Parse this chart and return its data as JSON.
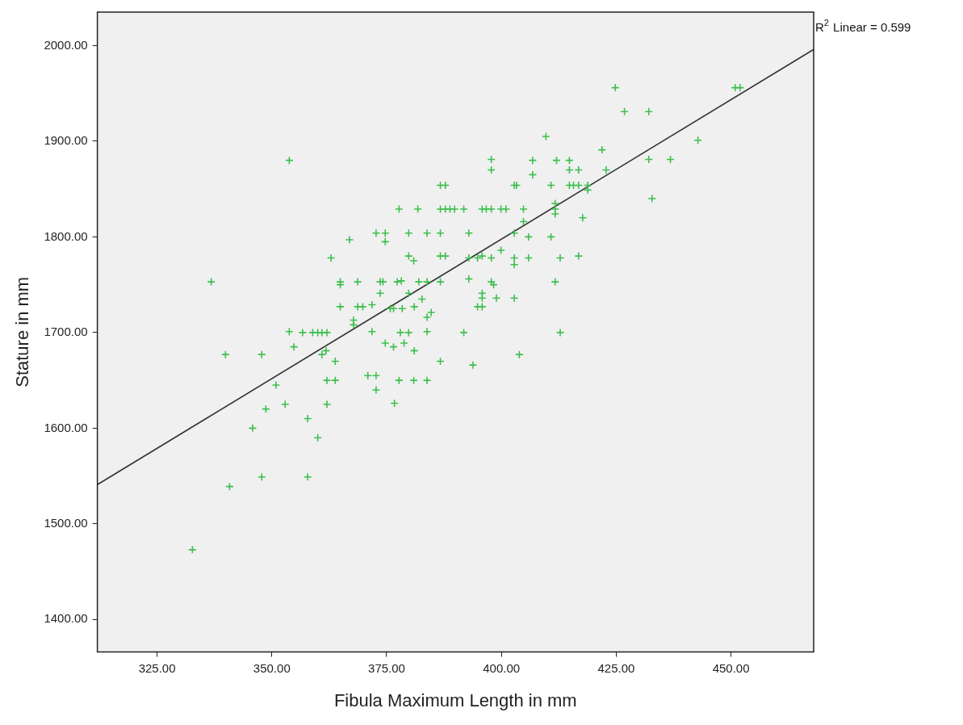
{
  "chart_data": {
    "type": "scatter",
    "xlabel": "Fibula Maximum Length in mm",
    "ylabel": "Stature in mm",
    "annotations": [
      "R$^{2}$ Linear = 0.599"
    ],
    "xlim": [
      312,
      468
    ],
    "ylim": [
      1366,
      2035
    ],
    "xticks": [
      {
        "value": 325,
        "label": "325.00"
      },
      {
        "value": 350,
        "label": "350.00"
      },
      {
        "value": 375,
        "label": "375.00"
      },
      {
        "value": 400,
        "label": "400.00"
      },
      {
        "value": 425,
        "label": "425.00"
      },
      {
        "value": 450,
        "label": "450.00"
      }
    ],
    "yticks": [
      {
        "value": 1400,
        "label": "1400.00"
      },
      {
        "value": 1500,
        "label": "1500.00"
      },
      {
        "value": 1600,
        "label": "1600.00"
      },
      {
        "value": 1700,
        "label": "1700.00"
      },
      {
        "value": 1800,
        "label": "1800.00"
      },
      {
        "value": 1900,
        "label": "1900.00"
      },
      {
        "value": 2000,
        "label": "2000.00"
      }
    ],
    "grid": false,
    "legend": false,
    "marker": "cross",
    "series": [
      {
        "type": "scatter",
        "color": "#3cbf4c",
        "x": [
          332.7,
          336.8,
          339.9,
          340.8,
          347.8,
          345.8,
          347.8,
          348.7,
          350.9,
          352.9,
          353.8,
          353.8,
          354.8,
          356.7,
          357.8,
          357.8,
          358.9,
          360,
          360.9,
          362,
          360,
          360.9,
          361.8,
          362,
          363.8,
          362,
          362.9,
          363.8,
          364.9,
          364.9,
          364.9,
          366.9,
          367.8,
          367.8,
          368.7,
          368.7,
          369.8,
          370.9,
          371.8,
          371.8,
          372.7,
          372.7,
          372.7,
          373.6,
          373.6,
          374.2,
          374.7,
          374.7,
          374.7,
          375.8,
          376.5,
          376.5,
          376.7,
          377.3,
          378.2,
          377.7,
          377.7,
          378,
          378.4,
          378.8,
          379.8,
          379.8,
          379.8,
          379.8,
          380.9,
          380.9,
          381,
          381,
          381.8,
          382,
          382.7,
          383.8,
          383.8,
          383.8,
          383.8,
          383.8,
          384.7,
          386.7,
          387.8,
          386.7,
          387.8,
          386.7,
          386.7,
          387.8,
          386.7,
          386.7,
          388.8,
          389.8,
          391.8,
          392.9,
          392.9,
          392.9,
          391.8,
          393.8,
          394.8,
          395.8,
          394.8,
          395.8,
          395.8,
          395.8,
          395.8,
          396.7,
          397.8,
          397.8,
          397.8,
          398.3,
          397.8,
          397.8,
          398.9,
          399.9,
          401,
          399.9,
          402.8,
          403.3,
          402.8,
          402.8,
          402.8,
          402.8,
          403.9,
          404.8,
          404.8,
          405.9,
          405.9,
          406.8,
          406.8,
          409.7,
          410.8,
          410.8,
          411.7,
          411.7,
          411.7,
          411.7,
          412,
          412.8,
          412.8,
          414.8,
          414.8,
          414.8,
          415.7,
          416.8,
          416.8,
          417.7,
          416.8,
          418.8,
          418.8,
          421.9,
          422.8,
          424.8,
          426.8,
          432.1,
          432.1,
          432.8,
          436.8,
          442.8,
          450.9,
          452
        ],
        "values": [
          1473,
          1753,
          1677,
          1539,
          1677,
          1600,
          1549,
          1620,
          1645,
          1625,
          1701,
          1880,
          1685,
          1700,
          1610,
          1549,
          1700,
          1700,
          1700,
          1700,
          1590,
          1677,
          1681,
          1650,
          1650,
          1625,
          1778,
          1670,
          1753,
          1750,
          1727,
          1797,
          1713,
          1708,
          1753,
          1727,
          1727,
          1655,
          1729,
          1701,
          1655,
          1640,
          1804,
          1741,
          1753,
          1753,
          1804,
          1795,
          1689,
          1725,
          1725,
          1685,
          1626,
          1753,
          1754,
          1829,
          1650,
          1700,
          1725,
          1689,
          1700,
          1741,
          1804,
          1780,
          1775,
          1650,
          1727,
          1681,
          1829,
          1753,
          1735,
          1804,
          1753,
          1701,
          1650,
          1716,
          1721,
          1829,
          1829,
          1854,
          1854,
          1804,
          1780,
          1780,
          1753,
          1670,
          1829,
          1829,
          1829,
          1804,
          1778,
          1756,
          1700,
          1666,
          1778,
          1780,
          1727,
          1727,
          1741,
          1736,
          1829,
          1829,
          1829,
          1778,
          1753,
          1750,
          1881,
          1870,
          1736,
          1829,
          1829,
          1786,
          1854,
          1854,
          1804,
          1778,
          1771,
          1736,
          1677,
          1829,
          1816,
          1778,
          1800,
          1880,
          1865,
          1905,
          1854,
          1800,
          1835,
          1829,
          1824,
          1753,
          1880,
          1778,
          1700,
          1880,
          1870,
          1854,
          1854,
          1854,
          1870,
          1820,
          1780,
          1854,
          1849,
          1891,
          1870,
          1956,
          1931,
          1931,
          1881,
          1840,
          1881,
          1901,
          1956,
          1956
        ]
      },
      {
        "type": "line",
        "color": "#333333",
        "x": [
          312,
          468
        ],
        "values": [
          1541,
          1996
        ],
        "marker": "none",
        "line_style": "solid"
      }
    ]
  }
}
